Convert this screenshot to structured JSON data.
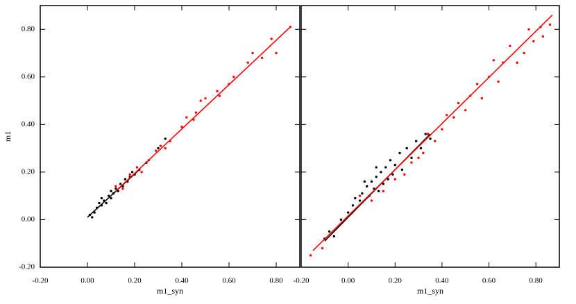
{
  "chart_data": [
    {
      "type": "scatter",
      "xlabel": "m1_syn",
      "ylabel": "m1",
      "xlim": [
        -0.2,
        0.9
      ],
      "ylim": [
        -0.2,
        0.9
      ],
      "xticks": [
        {
          "value": -0.2,
          "label": "-0.20"
        },
        {
          "value": 0,
          "label": "0.00"
        },
        {
          "value": 0.2,
          "label": "0.20"
        },
        {
          "value": 0.4,
          "label": "0.40"
        },
        {
          "value": 0.6,
          "label": "0.60"
        },
        {
          "value": 0.8,
          "label": "0.80"
        }
      ],
      "yticks": [
        {
          "value": -0.2,
          "label": "-0.20"
        },
        {
          "value": 0,
          "label": "0.00"
        },
        {
          "value": 0.2,
          "label": "0.20"
        },
        {
          "value": 0.4,
          "label": "0.40"
        },
        {
          "value": 0.6,
          "label": "0.60"
        },
        {
          "value": 0.8,
          "label": "0.80"
        }
      ],
      "series": [
        {
          "style": "points",
          "color": "#000000",
          "x": [
            0.01,
            0.02,
            0.03,
            0.04,
            0.05,
            0.06,
            0.07,
            0.08,
            0.09,
            0.1,
            0.1,
            0.11,
            0.12,
            0.13,
            0.14,
            0.15,
            0.16,
            0.17,
            0.18,
            0.19,
            0.2,
            0.22,
            0.25,
            0.3,
            0.33,
            0.06
          ],
          "values": [
            0.02,
            0.01,
            0.03,
            0.05,
            0.07,
            0.06,
            0.08,
            0.07,
            0.1,
            0.09,
            0.12,
            0.11,
            0.13,
            0.12,
            0.15,
            0.14,
            0.17,
            0.16,
            0.18,
            0.2,
            0.19,
            0.21,
            0.24,
            0.3,
            0.34,
            0.09
          ]
        },
        {
          "style": "points",
          "color": "#ff0000",
          "x": [
            0.12,
            0.15,
            0.18,
            0.21,
            0.23,
            0.26,
            0.29,
            0.31,
            0.33,
            0.35,
            0.4,
            0.42,
            0.45,
            0.46,
            0.48,
            0.5,
            0.55,
            0.56,
            0.6,
            0.62,
            0.68,
            0.7,
            0.74,
            0.78,
            0.8,
            0.86
          ],
          "values": [
            0.14,
            0.13,
            0.19,
            0.22,
            0.2,
            0.25,
            0.29,
            0.31,
            0.3,
            0.33,
            0.39,
            0.43,
            0.42,
            0.45,
            0.5,
            0.51,
            0.54,
            0.52,
            0.57,
            0.6,
            0.66,
            0.7,
            0.68,
            0.76,
            0.7,
            0.81
          ]
        },
        {
          "style": "line",
          "color": "#000000",
          "x": [
            0.0,
            0.22
          ],
          "values": [
            0.01,
            0.21
          ]
        },
        {
          "style": "line",
          "color": "#ff0000",
          "x": [
            0.12,
            0.86
          ],
          "values": [
            0.12,
            0.81
          ]
        }
      ]
    },
    {
      "type": "scatter",
      "xlabel": "m1_syn",
      "xlim": [
        -0.2,
        0.9
      ],
      "ylim": [
        -0.2,
        0.9
      ],
      "xticks": [
        {
          "value": -0.2,
          "label": "-0.20"
        },
        {
          "value": 0,
          "label": "0.00"
        },
        {
          "value": 0.2,
          "label": "0.20"
        },
        {
          "value": 0.4,
          "label": "0.40"
        },
        {
          "value": 0.6,
          "label": "0.60"
        },
        {
          "value": 0.8,
          "label": "0.80"
        }
      ],
      "series": [
        {
          "style": "points",
          "color": "#000000",
          "x": [
            -0.1,
            -0.08,
            -0.06,
            -0.03,
            0.0,
            0.02,
            0.03,
            0.05,
            0.06,
            0.08,
            0.09,
            0.1,
            0.11,
            0.12,
            0.13,
            0.14,
            0.15,
            0.16,
            0.17,
            0.18,
            0.19,
            0.2,
            0.22,
            0.23,
            0.25,
            0.27,
            0.29,
            0.31,
            0.33,
            0.35,
            0.07,
            0.12
          ],
          "values": [
            -0.08,
            -0.05,
            -0.07,
            0.0,
            0.03,
            0.06,
            0.09,
            0.08,
            0.11,
            0.14,
            0.1,
            0.16,
            0.13,
            0.18,
            0.12,
            0.2,
            0.15,
            0.22,
            0.17,
            0.25,
            0.19,
            0.23,
            0.28,
            0.21,
            0.3,
            0.26,
            0.33,
            0.3,
            0.36,
            0.34,
            0.16,
            0.22
          ]
        },
        {
          "style": "points",
          "color": "#ff0000",
          "x": [
            -0.16,
            -0.11,
            0.05,
            0.1,
            0.15,
            0.2,
            0.24,
            0.27,
            0.3,
            0.32,
            0.34,
            0.37,
            0.4,
            0.42,
            0.45,
            0.47,
            0.5,
            0.52,
            0.55,
            0.57,
            0.6,
            0.62,
            0.64,
            0.66,
            0.69,
            0.72,
            0.75,
            0.77,
            0.79,
            0.82,
            0.86,
            0.83
          ],
          "values": [
            -0.15,
            -0.12,
            0.1,
            0.08,
            0.12,
            0.17,
            0.19,
            0.24,
            0.26,
            0.28,
            0.36,
            0.33,
            0.38,
            0.44,
            0.43,
            0.49,
            0.46,
            0.52,
            0.57,
            0.51,
            0.6,
            0.67,
            0.58,
            0.66,
            0.73,
            0.66,
            0.7,
            0.8,
            0.75,
            0.81,
            0.82,
            0.77
          ]
        },
        {
          "style": "line",
          "color": "#000000",
          "x": [
            -0.1,
            0.35
          ],
          "values": [
            -0.09,
            0.36
          ]
        },
        {
          "style": "line",
          "color": "#ff0000",
          "x": [
            -0.15,
            0.87
          ],
          "values": [
            -0.13,
            0.86
          ]
        }
      ]
    }
  ]
}
